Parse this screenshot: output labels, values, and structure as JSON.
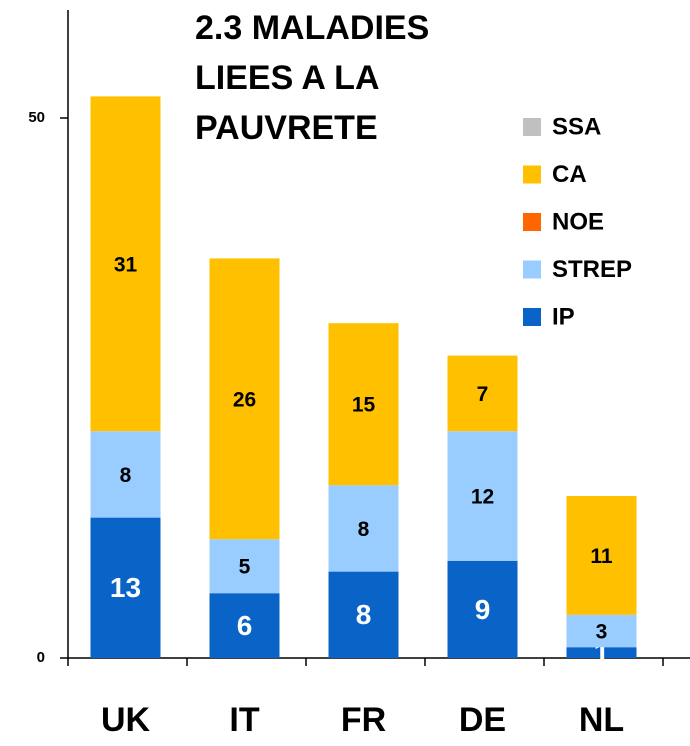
{
  "chart_data": {
    "type": "stacked_bar",
    "title": [
      "2.3 MALADIES",
      "LIEES A LA",
      "PAUVRETE"
    ],
    "categories": [
      "UK",
      "IT",
      "FR",
      "DE",
      "NL"
    ],
    "series": [
      {
        "name": "IP",
        "color": "#0a64c8",
        "values": [
          13,
          6,
          8,
          9,
          1
        ]
      },
      {
        "name": "STREP",
        "color": "#99ccff",
        "values": [
          8,
          5,
          8,
          12,
          3
        ]
      },
      {
        "name": "NOE",
        "color": "#ff6600",
        "values": [
          0,
          0,
          0,
          0,
          0
        ]
      },
      {
        "name": "CA",
        "color": "#ffc000",
        "values": [
          31,
          26,
          15,
          7,
          11
        ]
      },
      {
        "name": "SSA",
        "color": "#c0c0c0",
        "values": [
          0,
          0,
          0,
          0,
          0
        ]
      }
    ],
    "ylim": [
      0,
      60
    ],
    "yticks": [
      0,
      50
    ]
  }
}
